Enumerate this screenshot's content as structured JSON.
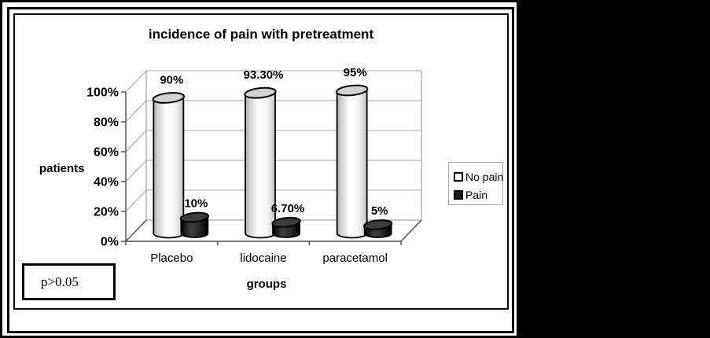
{
  "chart_data": {
    "type": "bar",
    "subtype": "3d-cylinder",
    "title": "incidence of pain with pretreatment",
    "xlabel": "groups",
    "ylabel": "patients",
    "categories": [
      "Placebo",
      "lidocaine",
      "paracetamol"
    ],
    "series": [
      {
        "name": "No pain",
        "color": "#ffffff",
        "values": [
          90,
          93.3,
          95
        ],
        "labels": [
          "90%",
          "93.30%",
          "95%"
        ]
      },
      {
        "name": "Pain",
        "color": "#1f1f1f",
        "values": [
          10,
          6.7,
          5
        ],
        "labels": [
          "10%",
          "6.70%",
          "5%"
        ]
      }
    ],
    "y_ticks": [
      "0%",
      "20%",
      "40%",
      "60%",
      "80%",
      "100%"
    ],
    "ylim": [
      0,
      100
    ],
    "grid": true,
    "legend_position": "right"
  },
  "annotation": {
    "p_value": "p>0.05"
  }
}
